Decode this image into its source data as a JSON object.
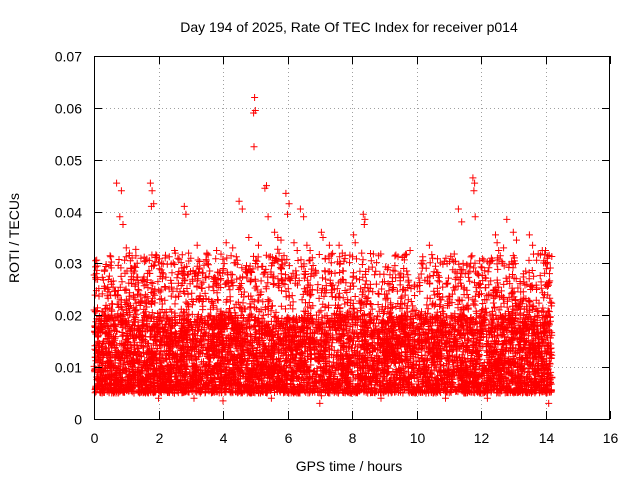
{
  "chart_data": {
    "type": "scatter",
    "title": "Day 194 of 2025, Rate Of TEC Index for receiver p014",
    "xlabel": "GPS time / hours",
    "ylabel": "ROTI / TECUs",
    "xlim": [
      0,
      16
    ],
    "ylim": [
      0,
      0.07
    ],
    "x_ticks": [
      0,
      2,
      4,
      6,
      8,
      10,
      12,
      14,
      16
    ],
    "y_ticks": [
      0,
      0.01,
      0.02,
      0.03,
      0.04,
      0.05,
      0.06,
      0.07
    ],
    "x_tick_labels": [
      "0",
      "2",
      "4",
      "6",
      "8",
      "10",
      "12",
      "14",
      "16"
    ],
    "y_tick_labels": [
      "0",
      "0.01",
      "0.02",
      "0.03",
      "0.04",
      "0.05",
      "0.06",
      "0.07"
    ],
    "grid": true,
    "marker": "+",
    "color": "#ff0000",
    "series": [
      {
        "name": "ROTI",
        "description": "dense cloud of points from 0 to ~14.2 h, mostly 0.005-0.02 TECUs",
        "x_range": [
          0,
          14.2
        ],
        "typical_range": [
          0.005,
          0.02
        ],
        "points": [
          [
            4.98,
            0.062
          ],
          [
            4.95,
            0.059
          ],
          [
            5.0,
            0.0595
          ],
          [
            4.96,
            0.0525
          ],
          [
            0.7,
            0.0455
          ],
          [
            0.85,
            0.044
          ],
          [
            1.75,
            0.0455
          ],
          [
            1.8,
            0.044
          ],
          [
            1.78,
            0.041
          ],
          [
            1.85,
            0.0415
          ],
          [
            0.8,
            0.039
          ],
          [
            0.9,
            0.0375
          ],
          [
            2.8,
            0.041
          ],
          [
            2.85,
            0.0395
          ],
          [
            4.5,
            0.042
          ],
          [
            4.6,
            0.0405
          ],
          [
            5.3,
            0.0445
          ],
          [
            5.35,
            0.045
          ],
          [
            5.4,
            0.039
          ],
          [
            5.95,
            0.0435
          ],
          [
            6.05,
            0.0415
          ],
          [
            6.0,
            0.0395
          ],
          [
            6.4,
            0.0405
          ],
          [
            6.5,
            0.039
          ],
          [
            8.35,
            0.0395
          ],
          [
            8.4,
            0.0385
          ],
          [
            8.38,
            0.0375
          ],
          [
            11.75,
            0.0465
          ],
          [
            11.8,
            0.0455
          ],
          [
            11.78,
            0.044
          ],
          [
            11.82,
            0.039
          ],
          [
            11.3,
            0.0405
          ],
          [
            11.4,
            0.038
          ],
          [
            12.45,
            0.0355
          ],
          [
            12.5,
            0.034
          ],
          [
            12.55,
            0.0325
          ],
          [
            12.6,
            0.0315
          ],
          [
            12.7,
            0.033
          ],
          [
            12.8,
            0.0385
          ],
          [
            13.0,
            0.036
          ],
          [
            13.1,
            0.0345
          ],
          [
            13.5,
            0.0355
          ],
          [
            13.6,
            0.0335
          ],
          [
            14.0,
            0.0325
          ],
          [
            14.05,
            0.031
          ],
          [
            13.9,
            0.0325
          ],
          [
            13.95,
            0.0305
          ],
          [
            9.8,
            0.0325
          ],
          [
            10.4,
            0.0335
          ],
          [
            10.5,
            0.031
          ],
          [
            10.2,
            0.0305
          ],
          [
            7.05,
            0.036
          ],
          [
            7.1,
            0.035
          ],
          [
            7.3,
            0.0335
          ],
          [
            7.6,
            0.0335
          ],
          [
            7.7,
            0.032
          ],
          [
            8.05,
            0.0355
          ],
          [
            8.1,
            0.034
          ],
          [
            8.3,
            0.032
          ],
          [
            8.6,
            0.0305
          ],
          [
            2.5,
            0.0325
          ],
          [
            2.6,
            0.031
          ],
          [
            3.0,
            0.031
          ],
          [
            3.2,
            0.0335
          ],
          [
            3.5,
            0.032
          ],
          [
            3.8,
            0.0325
          ],
          [
            4.1,
            0.034
          ],
          [
            4.3,
            0.033
          ],
          [
            4.8,
            0.035
          ],
          [
            5.1,
            0.0335
          ],
          [
            5.6,
            0.036
          ],
          [
            5.7,
            0.035
          ],
          [
            5.8,
            0.0345
          ],
          [
            6.2,
            0.034
          ],
          [
            6.3,
            0.0325
          ],
          [
            6.6,
            0.0335
          ],
          [
            6.7,
            0.0325
          ],
          [
            0.05,
            0.0305
          ],
          [
            0.1,
            0.0295
          ],
          [
            0.5,
            0.0315
          ],
          [
            1.0,
            0.033
          ],
          [
            1.1,
            0.032
          ],
          [
            1.3,
            0.0315
          ],
          [
            1.6,
            0.0305
          ],
          [
            2.1,
            0.03
          ],
          [
            14.1,
            0.003
          ],
          [
            7.0,
            0.003
          ],
          [
            7.05,
            0.0045
          ],
          [
            2.0,
            0.004
          ],
          [
            10.9,
            0.004
          ],
          [
            12.2,
            0.004
          ],
          [
            3.1,
            0.004
          ],
          [
            4.0,
            0.0035
          ],
          [
            5.5,
            0.004
          ],
          [
            8.9,
            0.004
          ]
        ]
      }
    ]
  }
}
